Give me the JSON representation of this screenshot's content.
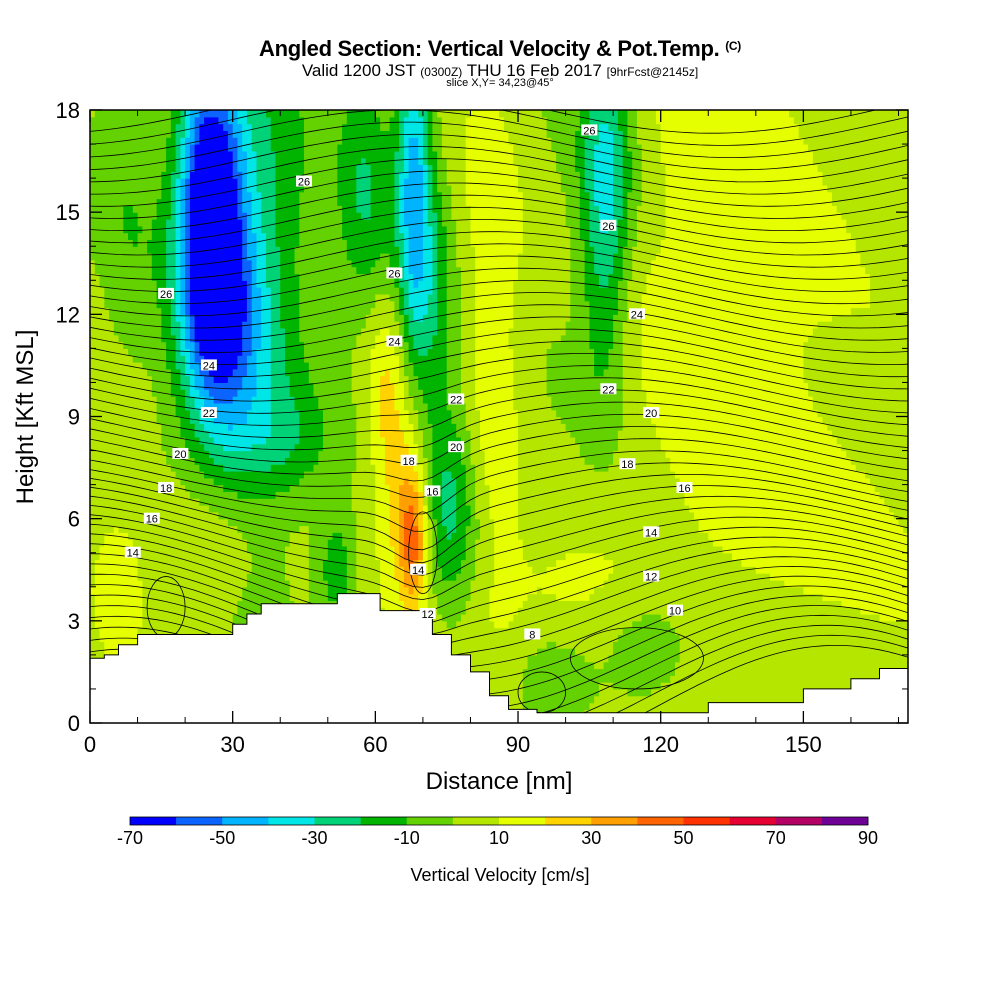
{
  "header": {
    "title": "Angled Section: Vertical Velocity & Pot.Temp.",
    "title_unit": "(C)",
    "valid_prefix": "Valid 1200 JST",
    "valid_utc": "(0300Z)",
    "valid_date": "THU 16 Feb 2017",
    "forecast": "[9hrFcst@2145z]",
    "slice": "slice X,Y= 34,23@45°"
  },
  "chart_data": {
    "type": "heatmap",
    "xlabel": "Distance [nm]",
    "ylabel": "Height [Kft MSL]",
    "xlim": [
      0,
      172
    ],
    "ylim": [
      0,
      18
    ],
    "xticks": [
      0,
      30,
      60,
      90,
      120,
      150
    ],
    "yticks": [
      0,
      3,
      6,
      9,
      12,
      15,
      18
    ],
    "colorbar": {
      "title": "Vertical Velocity [cm/s]",
      "levels": [
        -70,
        -60,
        -50,
        -40,
        -30,
        -20,
        -10,
        0,
        10,
        20,
        30,
        40,
        50,
        60,
        70,
        80,
        90
      ],
      "colors": [
        "#0000ff",
        "#0c64ff",
        "#00b4ff",
        "#00e6e6",
        "#00d278",
        "#00b400",
        "#64d200",
        "#b4e600",
        "#e6ff00",
        "#ffd200",
        "#ffa000",
        "#ff6400",
        "#ff3200",
        "#e60032",
        "#b40064",
        "#6e0096"
      ],
      "tick_labels": [
        "-70",
        "-50",
        "-30",
        "-10",
        "10",
        "30",
        "50",
        "70",
        "90"
      ]
    },
    "terrain": [
      [
        0,
        1.9
      ],
      [
        3,
        2.0
      ],
      [
        6,
        2.3
      ],
      [
        10,
        2.6
      ],
      [
        20,
        2.6
      ],
      [
        28,
        2.6
      ],
      [
        30,
        2.9
      ],
      [
        33,
        3.2
      ],
      [
        36,
        3.5
      ],
      [
        45,
        3.5
      ],
      [
        52,
        3.8
      ],
      [
        58,
        3.8
      ],
      [
        61,
        3.3
      ],
      [
        68,
        3.3
      ],
      [
        71,
        3.2
      ],
      [
        72,
        2.6
      ],
      [
        76,
        2.0
      ],
      [
        80,
        1.5
      ],
      [
        84,
        0.8
      ],
      [
        88,
        0.4
      ],
      [
        94,
        0.3
      ],
      [
        100,
        0.3
      ],
      [
        128,
        0.3
      ],
      [
        130,
        0.6
      ],
      [
        140,
        0.6
      ],
      [
        150,
        1.0
      ],
      [
        160,
        1.3
      ],
      [
        166,
        1.6
      ],
      [
        172,
        1.6
      ]
    ],
    "contour_labels": [
      {
        "value": "26",
        "x": 105,
        "y": 17.4
      },
      {
        "value": "26",
        "x": 45,
        "y": 15.9
      },
      {
        "value": "26",
        "x": 109,
        "y": 14.6
      },
      {
        "value": "26",
        "x": 64,
        "y": 13.2
      },
      {
        "value": "26",
        "x": 16,
        "y": 12.6
      },
      {
        "value": "24",
        "x": 115,
        "y": 12.0
      },
      {
        "value": "24",
        "x": 64,
        "y": 11.2
      },
      {
        "value": "24",
        "x": 25,
        "y": 10.5
      },
      {
        "value": "22",
        "x": 109,
        "y": 9.8
      },
      {
        "value": "22",
        "x": 77,
        "y": 9.5
      },
      {
        "value": "22",
        "x": 25,
        "y": 9.1
      },
      {
        "value": "20",
        "x": 118,
        "y": 9.1
      },
      {
        "value": "20",
        "x": 77,
        "y": 8.1
      },
      {
        "value": "20",
        "x": 19,
        "y": 7.9
      },
      {
        "value": "18",
        "x": 67,
        "y": 7.7
      },
      {
        "value": "18",
        "x": 113,
        "y": 7.6
      },
      {
        "value": "18",
        "x": 16,
        "y": 6.9
      },
      {
        "value": "16",
        "x": 72,
        "y": 6.8
      },
      {
        "value": "16",
        "x": 125,
        "y": 6.9
      },
      {
        "value": "16",
        "x": 13,
        "y": 6.0
      },
      {
        "value": "14",
        "x": 118,
        "y": 5.6
      },
      {
        "value": "14",
        "x": 9,
        "y": 5.0
      },
      {
        "value": "14",
        "x": 69,
        "y": 4.5
      },
      {
        "value": "12",
        "x": 118,
        "y": 4.3
      },
      {
        "value": "12",
        "x": 71,
        "y": 3.2
      },
      {
        "value": "10",
        "x": 123,
        "y": 3.3
      },
      {
        "value": "8",
        "x": 93,
        "y": 2.6
      }
    ]
  }
}
